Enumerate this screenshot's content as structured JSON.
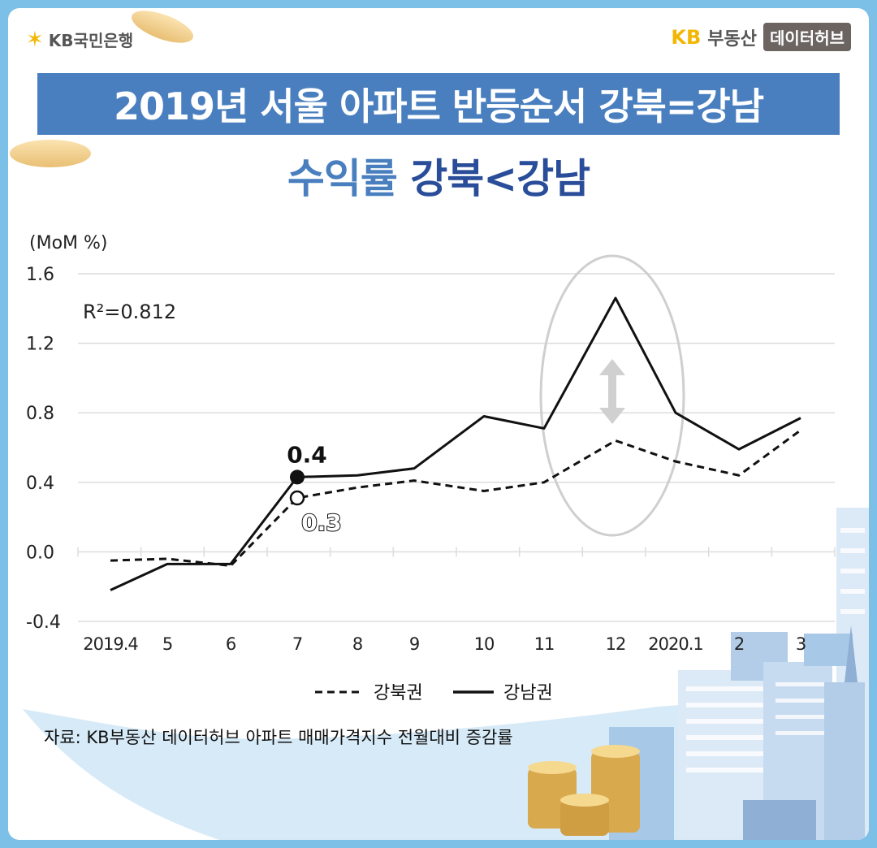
{
  "brand": {
    "bank_name": "KB국민은행",
    "kb": "KB",
    "bds": "부동산",
    "hub": "데이터허브"
  },
  "title": "2019년 서울 아파트 반등순서 강북=강남",
  "subtitle_part1": "수익률",
  "subtitle_part2": "강북<강남",
  "source": "자료: KB부동산 데이터허브 아파트 매매가격지수 전월대비 증감률",
  "colors": {
    "accent": "#4a7fbf",
    "accent_dark": "#2a4d9a",
    "frame": "#7cc0e8"
  },
  "chart_data": {
    "type": "line",
    "unit_label": "(MoM %)",
    "r2_label": "R²=0.812",
    "x": [
      "2019.4",
      "5",
      "6",
      "7",
      "8",
      "9",
      "10",
      "11",
      "12",
      "2020.1",
      "2",
      "3"
    ],
    "yticks": [
      "1.6",
      "1.2",
      "0.8",
      "0.4",
      "0.0",
      "-0.4"
    ],
    "ylim": [
      -0.4,
      1.6
    ],
    "series": [
      {
        "name": "강북권",
        "style": "dashed",
        "values": [
          -0.05,
          -0.04,
          -0.08,
          0.31,
          0.37,
          0.41,
          0.35,
          0.4,
          0.64,
          0.52,
          0.44,
          0.7
        ]
      },
      {
        "name": "강남권",
        "style": "solid",
        "values": [
          -0.22,
          -0.07,
          -0.07,
          0.43,
          0.44,
          0.48,
          0.78,
          0.71,
          1.46,
          0.8,
          0.59,
          0.77
        ]
      }
    ],
    "annotations": [
      {
        "series": "강남권",
        "index": 3,
        "text": "0.4"
      },
      {
        "series": "강북권",
        "index": 3,
        "text": "0.3"
      }
    ],
    "highlight_index": 8,
    "grid": true,
    "legend": "bottom"
  }
}
